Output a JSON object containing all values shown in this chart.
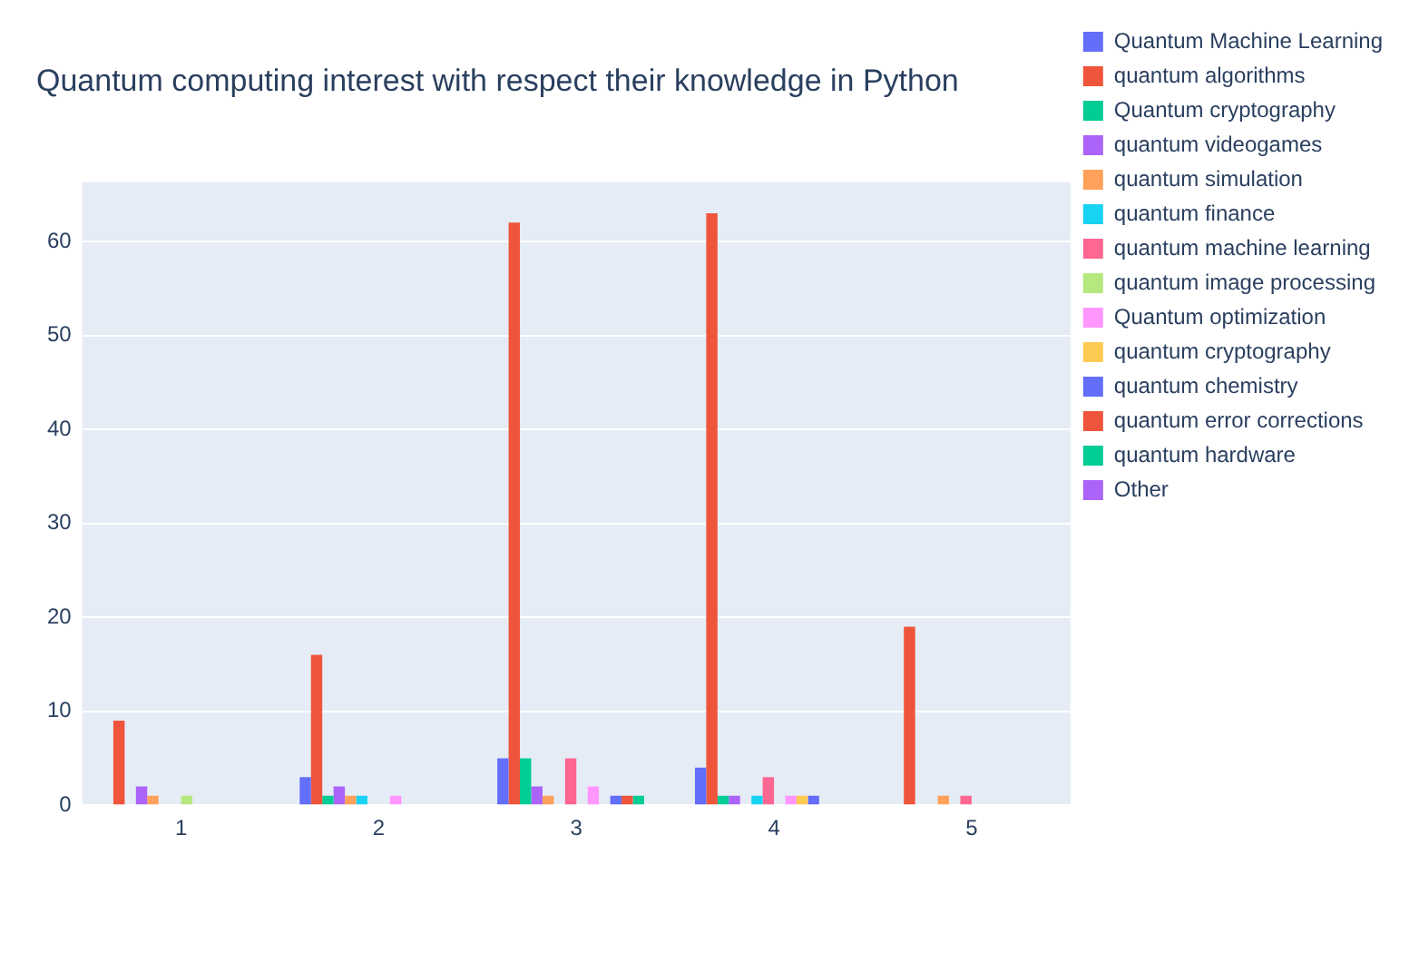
{
  "chart_data": {
    "type": "bar",
    "title": "Quantum computing interest with respect their knowledge in Python",
    "categories": [
      "1",
      "2",
      "3",
      "4",
      "5"
    ],
    "series": [
      {
        "name": "Quantum Machine Learning",
        "color": "#636efa",
        "values": [
          0,
          3,
          5,
          4,
          0
        ]
      },
      {
        "name": "quantum algorithms",
        "color": "#ef553b",
        "values": [
          9,
          16,
          62,
          63,
          19
        ]
      },
      {
        "name": "Quantum cryptography",
        "color": "#00cc96",
        "values": [
          0,
          1,
          5,
          1,
          0
        ]
      },
      {
        "name": "quantum videogames",
        "color": "#ab63fa",
        "values": [
          2,
          2,
          2,
          1,
          0
        ]
      },
      {
        "name": "quantum simulation",
        "color": "#ffa15a",
        "values": [
          1,
          1,
          1,
          0,
          1
        ]
      },
      {
        "name": "quantum finance",
        "color": "#19d3f3",
        "values": [
          0,
          1,
          0,
          1,
          0
        ]
      },
      {
        "name": "quantum machine learning",
        "color": "#ff6692",
        "values": [
          0,
          0,
          5,
          3,
          1
        ]
      },
      {
        "name": "quantum image processing",
        "color": "#b6e880",
        "values": [
          1,
          0,
          0,
          0,
          0
        ]
      },
      {
        "name": "Quantum optimization",
        "color": "#ff97ff",
        "values": [
          0,
          1,
          2,
          1,
          0
        ]
      },
      {
        "name": "quantum cryptography",
        "color": "#fecb52",
        "values": [
          0,
          0,
          0,
          1,
          0
        ]
      },
      {
        "name": "quantum chemistry",
        "color": "#636efa",
        "values": [
          0,
          0,
          1,
          1,
          0
        ]
      },
      {
        "name": "quantum error corrections",
        "color": "#ef553b",
        "values": [
          0,
          0,
          1,
          0,
          0
        ]
      },
      {
        "name": "quantum hardware",
        "color": "#00cc96",
        "values": [
          0,
          0,
          1,
          0,
          0
        ]
      },
      {
        "name": "Other",
        "color": "#ab63fa",
        "values": [
          0,
          0,
          0,
          0,
          0
        ]
      }
    ],
    "ylim": [
      0,
      66.3
    ],
    "yticks": [
      0,
      10,
      20,
      30,
      40,
      50,
      60
    ],
    "grid": "y",
    "legend": "right"
  }
}
